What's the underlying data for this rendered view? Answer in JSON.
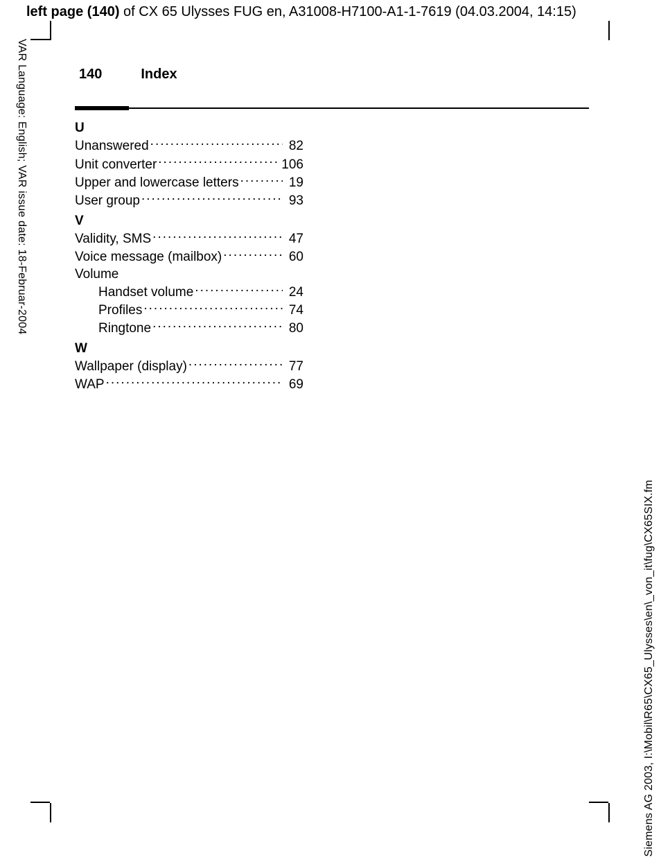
{
  "header": {
    "bold": "left page (140)",
    "rest": " of CX 65 Ulysses FUG en, A31008-H7100-A1-1-7619 (04.03.2004, 14:15)"
  },
  "left_margin_text": "VAR Language: English; VAR issue date: 18-Februar-2004",
  "right_margin_text": "Siemens AG 2003, I:\\Mobil\\R65\\CX65_Ulysses\\en\\_von_it\\fug\\CX65SIX.fm",
  "page": {
    "number": "140",
    "title": "Index"
  },
  "index": {
    "U": {
      "letter": "U",
      "items": [
        {
          "label": "Unanswered",
          "page": "82"
        },
        {
          "label": "Unit converter",
          "page": "106"
        },
        {
          "label": "Upper and lowercase letters",
          "page": "19"
        },
        {
          "label": "User group",
          "page": "93"
        }
      ]
    },
    "V": {
      "letter": "V",
      "items": [
        {
          "label": "Validity, SMS",
          "page": "47"
        },
        {
          "label": "Voice message (mailbox)",
          "page": "60"
        }
      ],
      "volume_label": "Volume",
      "volume_items": [
        {
          "label": "Handset volume",
          "page": "24"
        },
        {
          "label": "Profiles",
          "page": "74"
        },
        {
          "label": "Ringtone",
          "page": "80"
        }
      ]
    },
    "W": {
      "letter": "W",
      "items": [
        {
          "label": "Wallpaper (display)",
          "page": "77"
        },
        {
          "label": "WAP",
          "page": "69"
        }
      ]
    }
  }
}
